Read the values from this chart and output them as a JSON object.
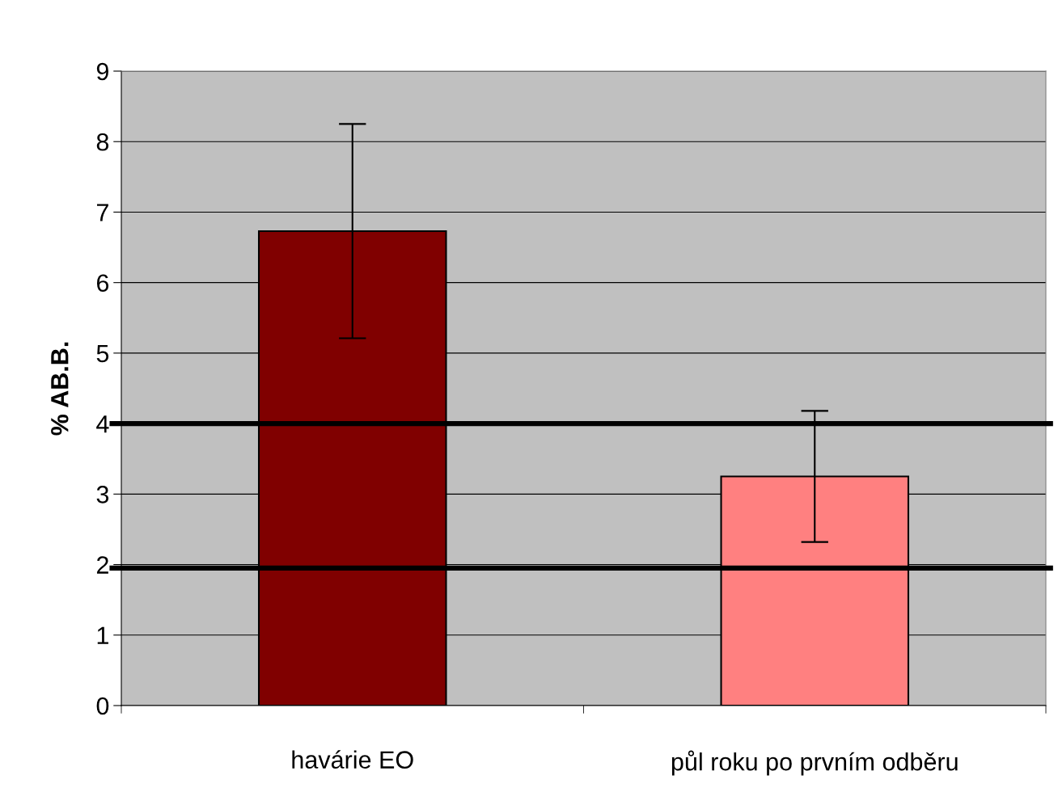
{
  "chart_data": {
    "type": "bar",
    "ylabel": "% AB.B.",
    "categories": [
      "havárie EO",
      "půl roku po prvním odběru"
    ],
    "values": [
      6.73,
      3.25
    ],
    "colors": [
      "#800000",
      "#ff8080"
    ],
    "errors": [
      1.52,
      0.93
    ],
    "ylim": [
      0,
      9
    ],
    "yticks": [
      0,
      1,
      2,
      3,
      4,
      5,
      6,
      7,
      8,
      9
    ],
    "grid": "y",
    "ref_lines": [
      {
        "axis": "y",
        "value": 4,
        "label": null,
        "color": "#000000"
      },
      {
        "axis": "y",
        "value": 1.95,
        "label": null,
        "color": "#000000"
      }
    ]
  }
}
